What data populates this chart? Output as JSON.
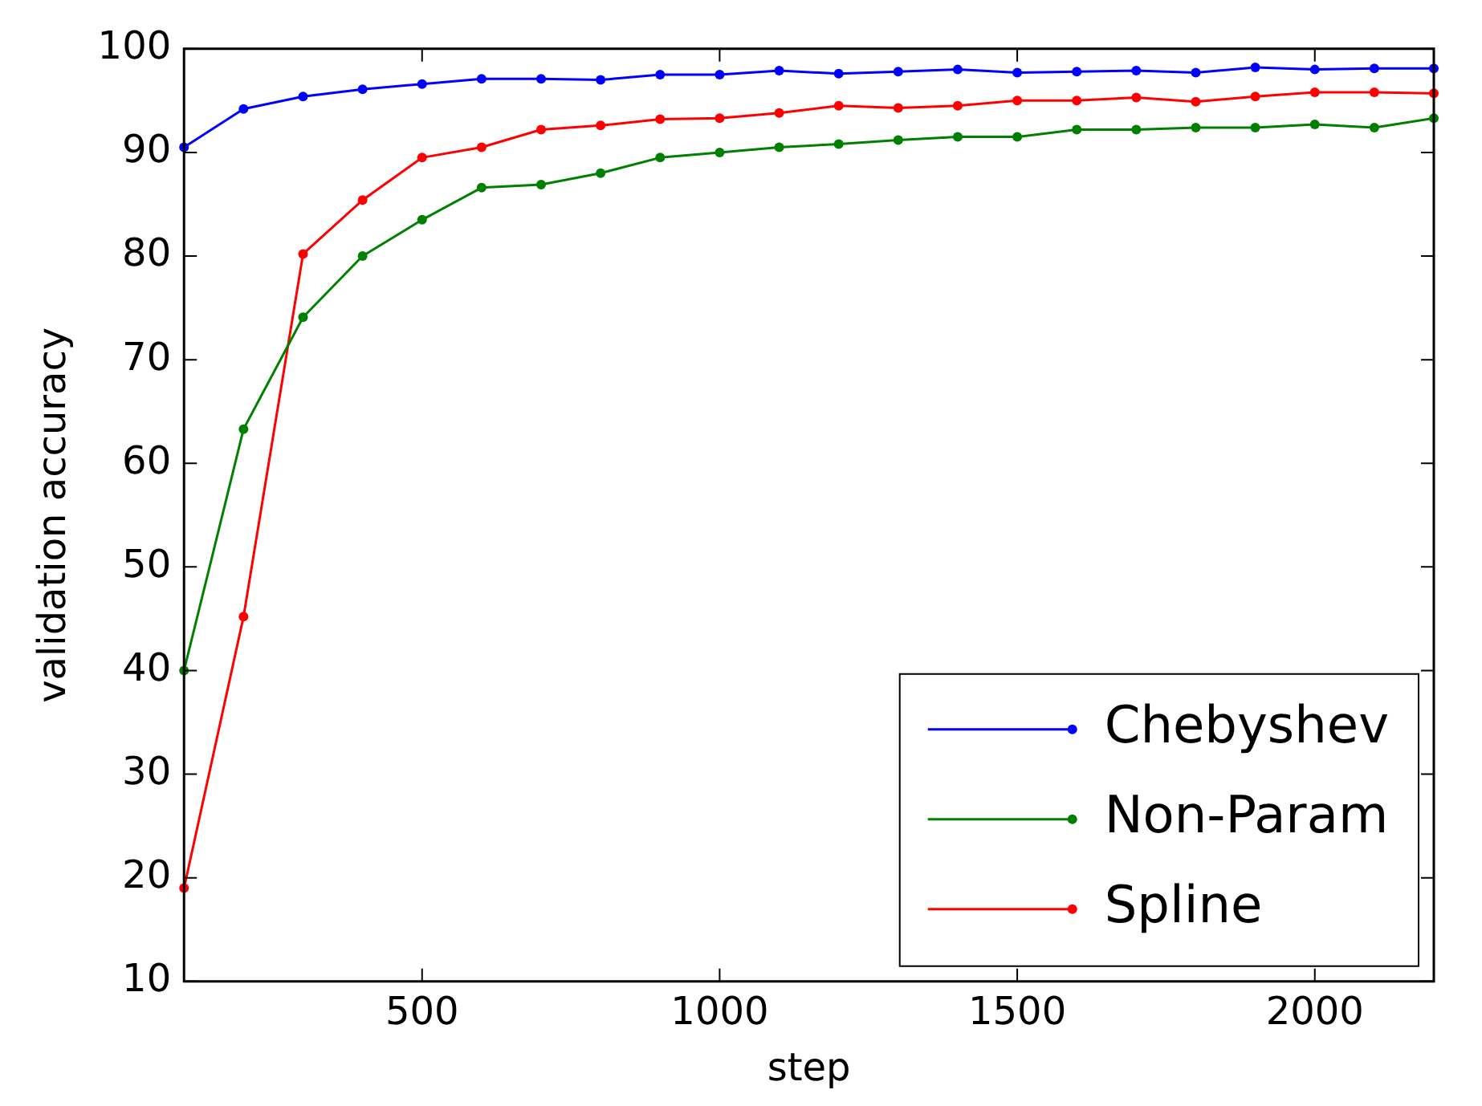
{
  "chart_data": {
    "type": "line",
    "xlabel": "step",
    "ylabel": "validation accuracy",
    "x": [
      100,
      200,
      300,
      400,
      500,
      600,
      700,
      800,
      900,
      1000,
      1100,
      1200,
      1300,
      1400,
      1500,
      1600,
      1700,
      1800,
      1900,
      2000,
      2100,
      2200
    ],
    "series": [
      {
        "name": "Chebyshev",
        "color": "#0000ff",
        "values": [
          90.5,
          94.2,
          95.4,
          96.1,
          96.6,
          97.1,
          97.1,
          97.0,
          97.5,
          97.5,
          97.9,
          97.6,
          97.8,
          98.0,
          97.7,
          97.8,
          97.9,
          97.7,
          98.2,
          98.0,
          98.1,
          98.1
        ]
      },
      {
        "name": "Non-Param",
        "color": "#008000",
        "values": [
          40.0,
          63.3,
          74.1,
          80.0,
          83.5,
          86.6,
          86.9,
          88.0,
          89.5,
          90.0,
          90.5,
          90.8,
          91.2,
          91.5,
          91.5,
          92.2,
          92.2,
          92.4,
          92.4,
          92.7,
          92.4,
          93.3
        ]
      },
      {
        "name": "Spline",
        "color": "#ff0000",
        "values": [
          19.0,
          45.2,
          80.2,
          85.4,
          89.5,
          90.5,
          92.2,
          92.6,
          93.2,
          93.3,
          93.8,
          94.5,
          94.3,
          94.5,
          95.0,
          95.0,
          95.3,
          94.9,
          95.4,
          95.8,
          95.8,
          95.7
        ]
      }
    ],
    "xlim": [
      100,
      2200
    ],
    "xticks": [
      500,
      1000,
      1500,
      2000
    ],
    "ylim": [
      10,
      100
    ],
    "yticks": [
      10,
      20,
      30,
      40,
      50,
      60,
      70,
      80,
      90,
      100
    ],
    "grid": false,
    "legend": "bottom right",
    "marker": "circle",
    "line_style": "solid"
  }
}
